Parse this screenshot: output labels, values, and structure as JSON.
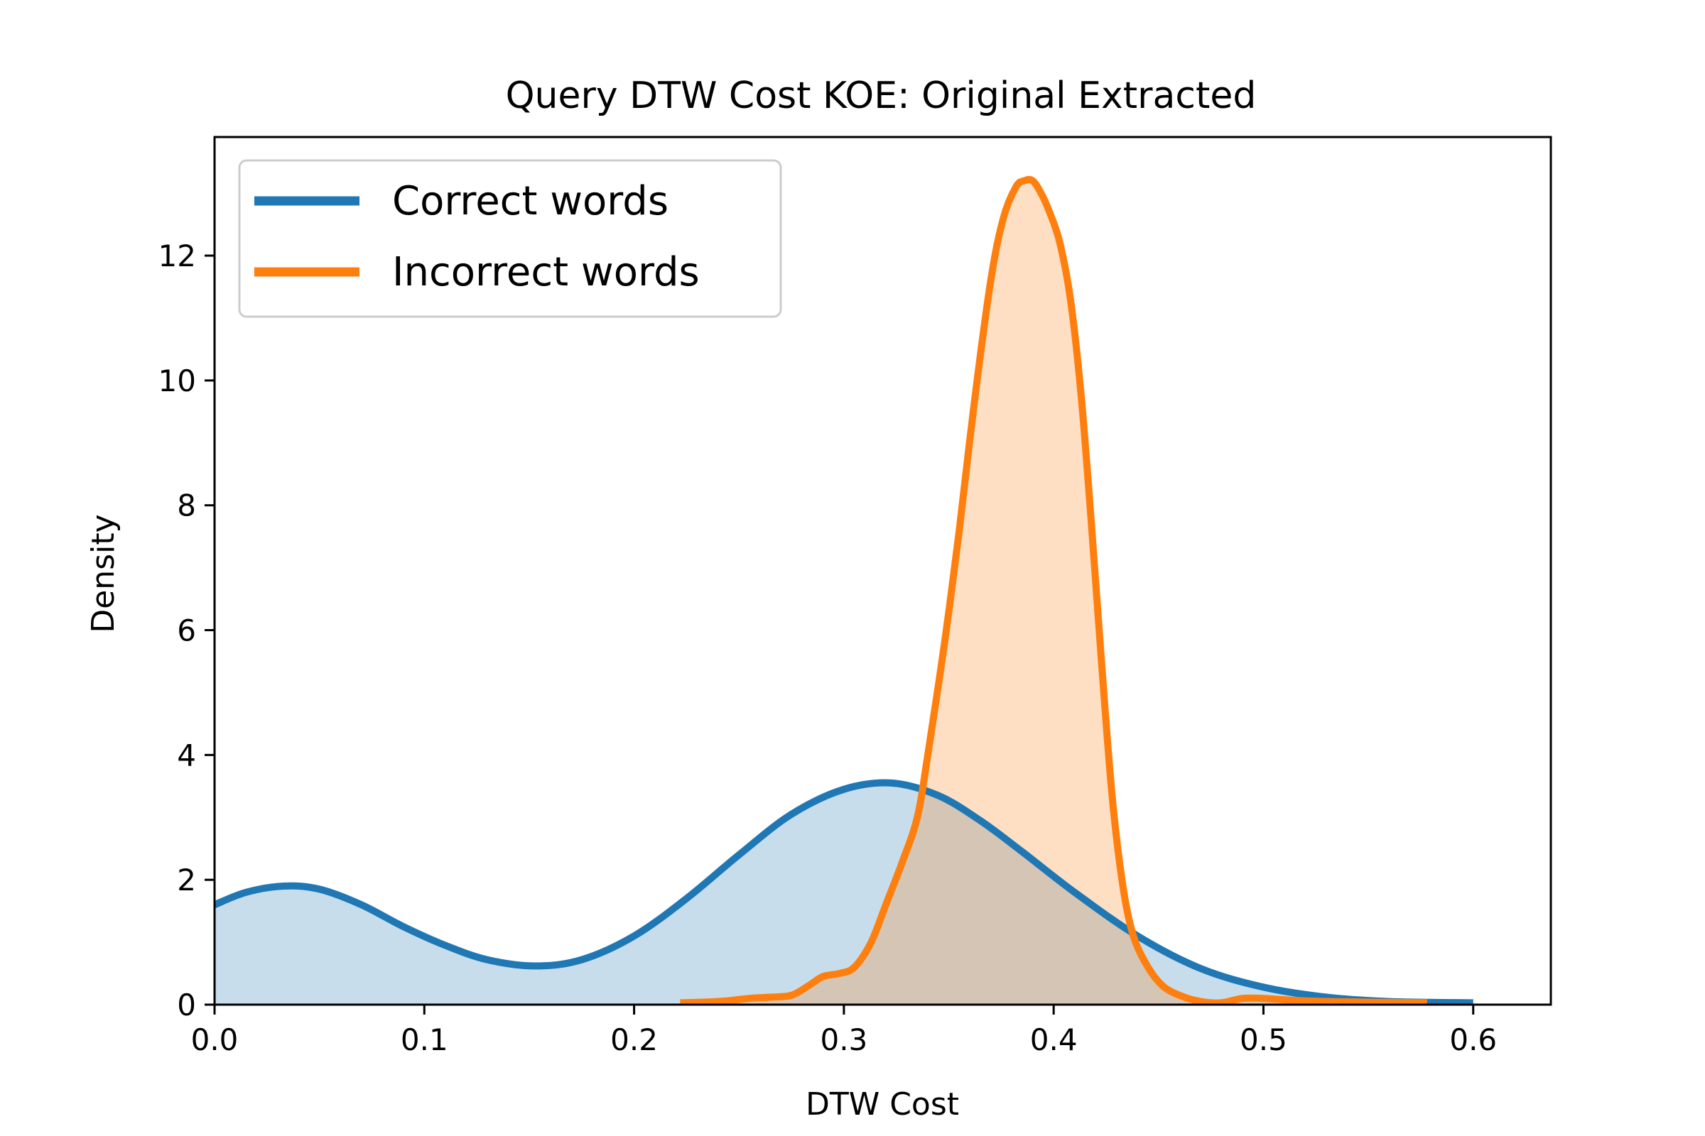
{
  "chart_data": {
    "type": "area",
    "title": "Query DTW Cost KOE: Original Extracted",
    "xlabel": "DTW Cost",
    "ylabel": "Density",
    "xlim": [
      0.0,
      0.637
    ],
    "ylim": [
      0.0,
      13.9
    ],
    "xticks": [
      "0.0",
      "0.1",
      "0.2",
      "0.3",
      "0.4",
      "0.5",
      "0.6"
    ],
    "yticks": [
      "0",
      "2",
      "4",
      "6",
      "8",
      "10",
      "12"
    ],
    "grid": false,
    "legend_position": "top-left",
    "series": [
      {
        "name": "Correct words",
        "color": "#1f77b4",
        "fill_color": "#c6dbef",
        "x": [
          0.0,
          0.015,
          0.033,
          0.05,
          0.07,
          0.09,
          0.11,
          0.13,
          0.153,
          0.175,
          0.2,
          0.225,
          0.25,
          0.275,
          0.3,
          0.323,
          0.345,
          0.365,
          0.385,
          0.41,
          0.44,
          0.47,
          0.5,
          0.53,
          0.56,
          0.6
        ],
        "y": [
          1.6,
          1.8,
          1.9,
          1.85,
          1.6,
          1.25,
          0.95,
          0.72,
          0.62,
          0.72,
          1.1,
          1.7,
          2.4,
          3.05,
          3.45,
          3.55,
          3.35,
          2.95,
          2.45,
          1.8,
          1.1,
          0.58,
          0.28,
          0.12,
          0.05,
          0.03
        ]
      },
      {
        "name": "Incorrect words",
        "color": "#ff7f0e",
        "fill_color": "#fdd9bd",
        "x": [
          0.222,
          0.24,
          0.255,
          0.265,
          0.275,
          0.283,
          0.29,
          0.298,
          0.305,
          0.313,
          0.32,
          0.328,
          0.335,
          0.34,
          0.348,
          0.355,
          0.362,
          0.37,
          0.376,
          0.382,
          0.386,
          0.39,
          0.394,
          0.398,
          0.403,
          0.408,
          0.413,
          0.418,
          0.423,
          0.428,
          0.433,
          0.438,
          0.445,
          0.452,
          0.46,
          0.47,
          0.48,
          0.49,
          0.5,
          0.52,
          0.55,
          0.578
        ],
        "y": [
          0.03,
          0.05,
          0.1,
          0.12,
          0.15,
          0.3,
          0.45,
          0.5,
          0.6,
          1.0,
          1.6,
          2.3,
          3.0,
          4.0,
          5.8,
          7.6,
          9.6,
          11.6,
          12.6,
          13.1,
          13.2,
          13.2,
          13.0,
          12.7,
          12.2,
          11.3,
          9.8,
          7.7,
          5.4,
          3.3,
          1.9,
          1.1,
          0.6,
          0.3,
          0.15,
          0.05,
          0.03,
          0.1,
          0.1,
          0.06,
          0.04,
          0.03
        ]
      }
    ]
  }
}
